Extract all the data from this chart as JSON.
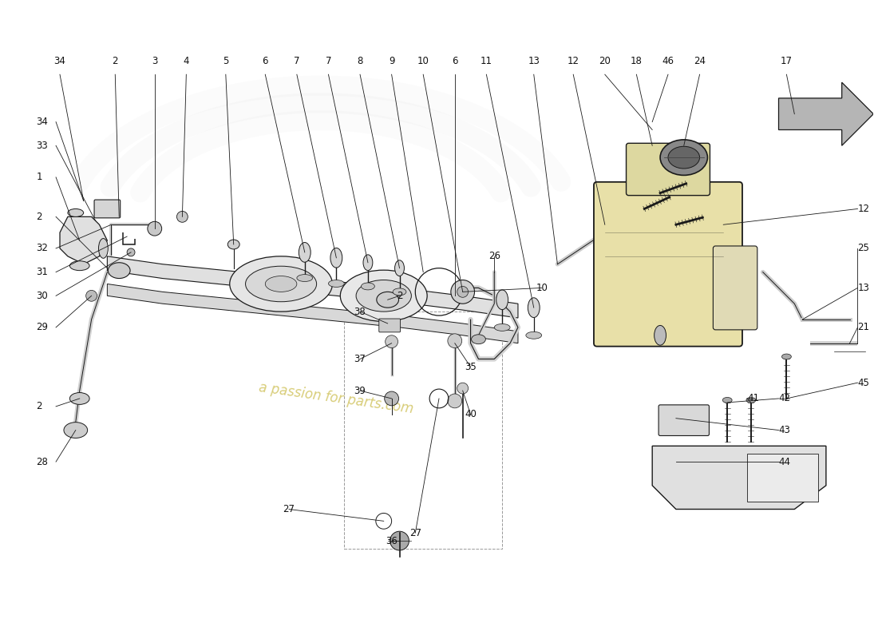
{
  "bg": "#ffffff",
  "lc": "#1a1a1a",
  "fs": 8.5,
  "watermark_text": "a passion for parts.com",
  "wm_color": "#c8b840",
  "wm_alpha": 0.7,
  "pipe_color": "#d8d8d8",
  "tank_color": "#e8e0a8",
  "component_color": "#e0e0e0",
  "arrow_color": "#aaaaaa",
  "dashed_color": "#999999",
  "logo_color": "#cccccc",
  "top_labels": [
    [
      "2",
      14,
      72
    ],
    [
      "3",
      19,
      72
    ],
    [
      "4",
      23,
      72
    ],
    [
      "5",
      28,
      72
    ],
    [
      "6",
      33,
      72
    ],
    [
      "7",
      37,
      72
    ],
    [
      "7",
      41,
      72
    ],
    [
      "8",
      45,
      72
    ],
    [
      "9",
      49,
      72
    ],
    [
      "10",
      53,
      72
    ],
    [
      "6",
      57,
      72
    ],
    [
      "11",
      61,
      72
    ],
    [
      "13",
      67,
      72
    ],
    [
      "12",
      72,
      72
    ],
    [
      "20",
      76,
      72
    ],
    [
      "18",
      80,
      72
    ],
    [
      "46",
      84,
      72
    ],
    [
      "24",
      88,
      72
    ],
    [
      "17",
      99,
      72
    ]
  ],
  "left_labels": [
    [
      "34",
      4,
      65
    ],
    [
      "33",
      4,
      62
    ],
    [
      "1",
      4,
      58
    ],
    [
      "2",
      4,
      53
    ],
    [
      "32",
      4,
      49
    ],
    [
      "31",
      4,
      46
    ],
    [
      "30",
      4,
      43
    ],
    [
      "29",
      4,
      39
    ],
    [
      "2",
      4,
      29
    ],
    [
      "28",
      4,
      22
    ]
  ],
  "right_labels": [
    [
      "12",
      108,
      54
    ],
    [
      "25",
      108,
      49
    ],
    [
      "13",
      108,
      44
    ],
    [
      "21",
      108,
      39
    ],
    [
      "45",
      108,
      32
    ],
    [
      "42",
      98,
      30
    ],
    [
      "41",
      94,
      30
    ],
    [
      "43",
      98,
      26
    ],
    [
      "44",
      98,
      22
    ]
  ],
  "mid_labels": [
    [
      "27",
      52,
      13
    ],
    [
      "27",
      36,
      16
    ],
    [
      "10",
      68,
      44
    ],
    [
      "26",
      62,
      44
    ],
    [
      "38",
      45,
      39
    ],
    [
      "37",
      45,
      35
    ],
    [
      "39",
      45,
      31
    ],
    [
      "36",
      49,
      12
    ],
    [
      "35",
      58,
      34
    ],
    [
      "40",
      59,
      28
    ],
    [
      "2",
      49,
      42
    ]
  ]
}
